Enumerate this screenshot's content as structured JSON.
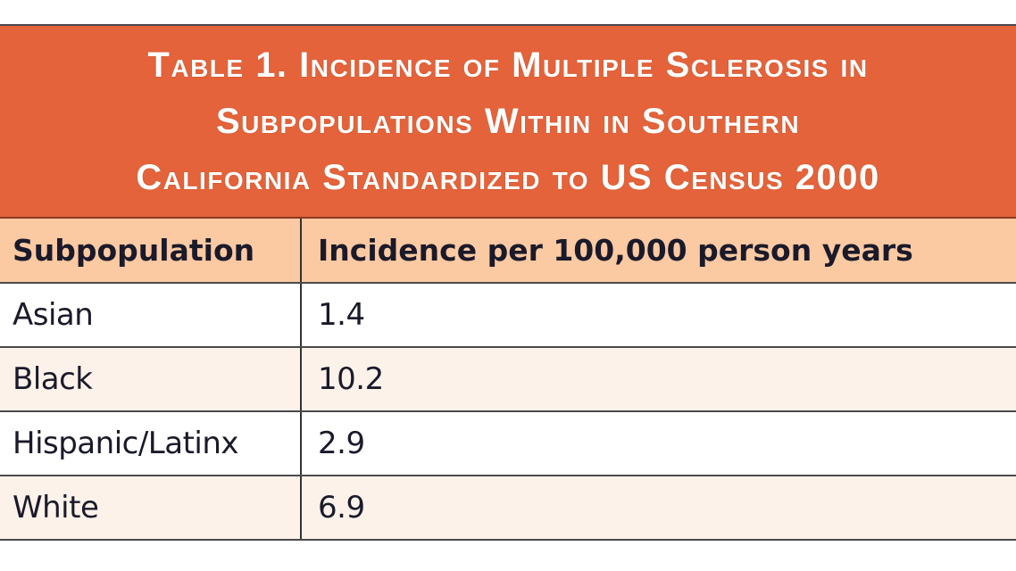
{
  "table": {
    "title_lines": [
      "Table 1. Incidence of Multiple Sclerosis in",
      "Subpopulations Within in Southern",
      "California Standardized to US Census 2000"
    ],
    "headers": [
      "Subpopulation",
      "Incidence per 100,000 person years"
    ],
    "rows": [
      {
        "subpopulation": "Asian",
        "incidence": "1.4"
      },
      {
        "subpopulation": "Black",
        "incidence": "10.2"
      },
      {
        "subpopulation": "Hispanic/Latinx",
        "incidence": "2.9"
      },
      {
        "subpopulation": "White",
        "incidence": "6.9"
      }
    ]
  },
  "colors": {
    "title_band": "#E4633A",
    "header_row": "#FBC9A2",
    "alt_row": "#FDF2EA"
  }
}
